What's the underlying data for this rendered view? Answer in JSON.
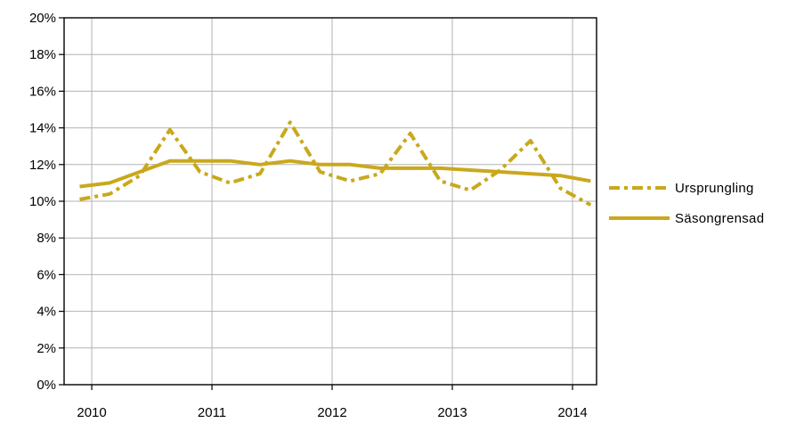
{
  "chart_data": {
    "type": "line",
    "title": "",
    "xlabel": "",
    "ylabel": "",
    "ylim": [
      0,
      20
    ],
    "y_ticks": [
      0,
      2,
      4,
      6,
      8,
      10,
      12,
      14,
      16,
      18,
      20
    ],
    "y_tick_labels": [
      "0%",
      "2%",
      "4%",
      "6%",
      "8%",
      "10%",
      "12%",
      "14%",
      "16%",
      "18%",
      "20%"
    ],
    "x_ticks": [
      2010,
      2011,
      2012,
      2013,
      2014
    ],
    "x_tick_labels": [
      "2010",
      "2011",
      "2012",
      "2013",
      "2014"
    ],
    "grid": true,
    "legend_position": "right",
    "series": [
      {
        "name": "Ursprungling",
        "style": "dash-dot",
        "color": "#C9A81C",
        "x": [
          2009.9,
          2010.15,
          2010.4,
          2010.65,
          2010.9,
          2011.15,
          2011.4,
          2011.65,
          2011.9,
          2012.15,
          2012.4,
          2012.65,
          2012.9,
          2013.15,
          2013.4,
          2013.65,
          2013.9,
          2014.15
        ],
        "values": [
          10.1,
          10.4,
          11.4,
          13.9,
          11.6,
          11.0,
          11.5,
          14.3,
          11.6,
          11.1,
          11.5,
          13.7,
          11.1,
          10.6,
          11.7,
          13.3,
          10.7,
          9.8
        ]
      },
      {
        "name": "Säsongrensad",
        "style": "solid",
        "color": "#C9A81C",
        "x": [
          2009.9,
          2010.15,
          2010.4,
          2010.65,
          2010.9,
          2011.15,
          2011.4,
          2011.65,
          2011.9,
          2012.15,
          2012.4,
          2012.65,
          2012.9,
          2013.15,
          2013.4,
          2013.65,
          2013.9,
          2014.15
        ],
        "values": [
          10.8,
          11.0,
          11.6,
          12.2,
          12.2,
          12.2,
          12.0,
          12.2,
          12.0,
          12.0,
          11.8,
          11.8,
          11.8,
          11.7,
          11.6,
          11.5,
          11.4,
          11.1
        ]
      }
    ]
  }
}
